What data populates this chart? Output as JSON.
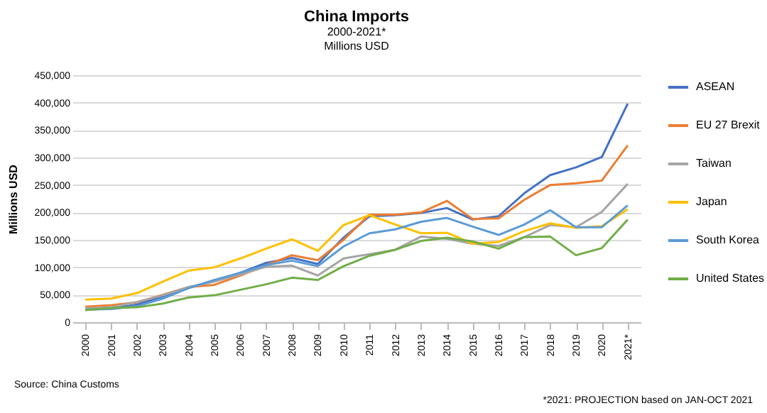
{
  "chart_data": {
    "type": "line",
    "title": "China Imports",
    "subtitle": "2000-2021*\nMillions USD",
    "ylabel": "Millions USD",
    "annotations": [
      "Source: China Customs",
      "*2021: PROJECTION based on JAN-OCT 2021"
    ],
    "categories": [
      "2000",
      "2001",
      "2002",
      "2003",
      "2004",
      "2005",
      "2006",
      "2007",
      "2008",
      "2009",
      "2010",
      "2011",
      "2012",
      "2013",
      "2014",
      "2015",
      "2016",
      "2017",
      "2018",
      "2019",
      "2020",
      "2021*"
    ],
    "series": [
      {
        "name": "ASEAN",
        "color": "#4472c4",
        "values": [
          23000,
          25000,
          32000,
          47000,
          63000,
          75000,
          90000,
          108000,
          117000,
          106000,
          154000,
          193000,
          195000,
          199000,
          208000,
          187000,
          193000,
          235000,
          268000,
          282000,
          301000,
          398000
        ]
      },
      {
        "name": "EU 27 Brexit",
        "color": "#ed7d31",
        "values": [
          28000,
          31000,
          36000,
          50000,
          64000,
          68000,
          85000,
          104000,
          122000,
          113000,
          150000,
          196000,
          196000,
          200000,
          221000,
          188000,
          189000,
          223000,
          250000,
          253000,
          258000,
          322000
        ]
      },
      {
        "name": "Taiwan",
        "color": "#a5a5a5",
        "values": [
          25000,
          27000,
          37000,
          49000,
          64000,
          74000,
          87000,
          101000,
          103000,
          85000,
          116000,
          124000,
          132000,
          156000,
          152000,
          143000,
          139000,
          155000,
          177000,
          173000,
          201000,
          252000
        ]
      },
      {
        "name": "Japan",
        "color": "#ffc000",
        "values": [
          41000,
          43000,
          53000,
          74000,
          94000,
          100000,
          116000,
          134000,
          151000,
          130000,
          177000,
          195000,
          178000,
          162000,
          163000,
          143000,
          146000,
          166000,
          180000,
          172000,
          175000,
          206000
        ]
      },
      {
        "name": "South Korea",
        "color": "#5b9bd5",
        "values": [
          23000,
          24000,
          29000,
          43000,
          62000,
          77000,
          90000,
          104000,
          112000,
          102000,
          138000,
          162000,
          169000,
          183000,
          190000,
          174000,
          159000,
          178000,
          204000,
          173000,
          173000,
          213000
        ]
      },
      {
        "name": "United States",
        "color": "#70ad47",
        "values": [
          22000,
          26000,
          27000,
          34000,
          45000,
          49000,
          59000,
          69000,
          81000,
          77000,
          102000,
          121000,
          132000,
          148000,
          154000,
          147000,
          134000,
          155000,
          156000,
          122000,
          135000,
          187000
        ]
      }
    ],
    "ylim": [
      0,
      450000
    ],
    "yticks": [
      0,
      {
        "value": 50000,
        "label": "50,000"
      },
      {
        "value": 100000,
        "label": "100,000"
      },
      {
        "value": 150000,
        "label": "150,000"
      },
      {
        "value": 200000,
        "label": "200,000"
      },
      {
        "value": 250000,
        "label": "250,000"
      },
      {
        "value": 300000,
        "label": "300,000"
      },
      {
        "value": 350000,
        "label": "350,000"
      },
      {
        "value": 400000,
        "label": "400,000"
      },
      {
        "value": 450000,
        "label": "450,000"
      }
    ],
    "grid": "y",
    "legend": "right",
    "marker": "none",
    "line_style": "solid"
  }
}
